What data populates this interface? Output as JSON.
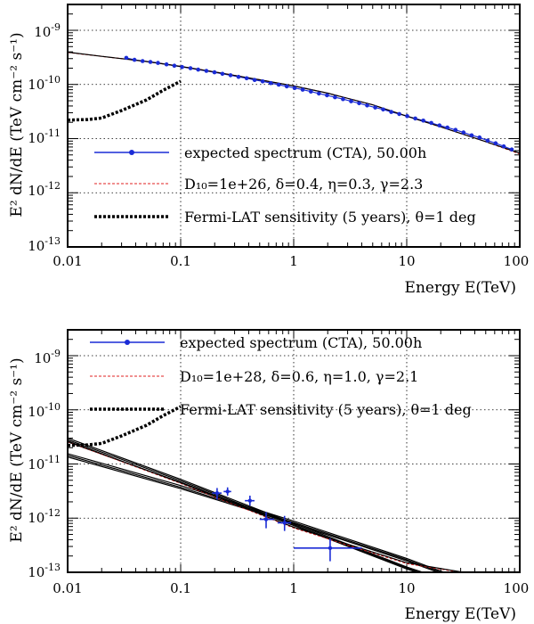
{
  "chart_data": [
    {
      "type": "line",
      "panel": "top",
      "xscale": "log",
      "yscale": "log",
      "xlim": [
        0.01,
        100
      ],
      "ylim": [
        1e-13,
        3e-09
      ],
      "xlabel": "Energy E(TeV)",
      "ylabel": "E² dN/dE (TeV cm⁻² s⁻¹)",
      "xticks": [
        "0.01",
        "0.1",
        "1",
        "10",
        "100"
      ],
      "yticks": [
        {
          "base": "10",
          "exp": "-9"
        },
        {
          "base": "10",
          "exp": "-10"
        },
        {
          "base": "10",
          "exp": "-11"
        },
        {
          "base": "10",
          "exp": "-12"
        },
        {
          "base": "10",
          "exp": "-13"
        }
      ],
      "grid": true,
      "legend": [
        {
          "text": "expected spectrum (CTA), 50.00h"
        },
        {
          "text": "D₁₀=1e+26, δ=0.4, η=0.3, γ=2.3"
        },
        {
          "text": "Fermi-LAT sensitivity (5 years), θ=1 deg"
        }
      ],
      "series": [
        {
          "name": "expected spectrum (CTA), 50.00h",
          "color": "#1a2bd6",
          "points": [
            [
              0.033,
              3.1e-10
            ],
            [
              0.039,
              2.85e-10
            ],
            [
              0.046,
              2.7e-10
            ],
            [
              0.054,
              2.6e-10
            ],
            [
              0.063,
              2.5e-10
            ],
            [
              0.075,
              2.35e-10
            ],
            [
              0.088,
              2.22e-10
            ],
            [
              0.103,
              2.1e-10
            ],
            [
              0.122,
              2e-10
            ],
            [
              0.143,
              1.88e-10
            ],
            [
              0.169,
              1.78e-10
            ],
            [
              0.199,
              1.68e-10
            ],
            [
              0.234,
              1.57e-10
            ],
            [
              0.276,
              1.48e-10
            ],
            [
              0.325,
              1.38e-10
            ],
            [
              0.383,
              1.3e-10
            ],
            [
              0.451,
              1.21e-10
            ],
            [
              0.531,
              1.14e-10
            ],
            [
              0.626,
              1.06e-10
            ],
            [
              0.737,
              9.9e-11
            ],
            [
              0.868,
              9.2e-11
            ],
            [
              1.02,
              8.6e-11
            ],
            [
              1.2,
              8e-11
            ],
            [
              1.42,
              7.4e-11
            ],
            [
              1.67,
              6.8e-11
            ],
            [
              1.97,
              6.3e-11
            ],
            [
              2.32,
              5.8e-11
            ],
            [
              2.73,
              5.35e-11
            ],
            [
              3.22,
              4.9e-11
            ],
            [
              3.79,
              4.5e-11
            ],
            [
              4.46,
              4.1e-11
            ],
            [
              5.26,
              3.75e-11
            ],
            [
              6.19,
              3.45e-11
            ],
            [
              7.29,
              3.1e-11
            ],
            [
              8.59,
              2.85e-11
            ],
            [
              10.1,
              2.6e-11
            ],
            [
              11.9,
              2.35e-11
            ],
            [
              14.0,
              2.15e-11
            ],
            [
              16.5,
              1.95e-11
            ],
            [
              19.5,
              1.75e-11
            ],
            [
              22.9,
              1.6e-11
            ],
            [
              27.0,
              1.45e-11
            ],
            [
              31.8,
              1.3e-11
            ],
            [
              37.5,
              1.15e-11
            ],
            [
              44.1,
              1.05e-11
            ],
            [
              52.0,
              9.2e-12
            ],
            [
              61.2,
              8.2e-12
            ],
            [
              72.1,
              7.2e-12
            ],
            [
              84.9,
              6.3e-12
            ]
          ]
        },
        {
          "name": "D₁₀=1e+26, δ=0.4, η=0.3, γ=2.3",
          "color": "#e02020",
          "points": [
            [
              0.01,
              3.9e-10
            ],
            [
              0.02,
              3.3e-10
            ],
            [
              0.05,
              2.65e-10
            ],
            [
              0.1,
              2.15e-10
            ],
            [
              0.2,
              1.7e-10
            ],
            [
              0.5,
              1.22e-10
            ],
            [
              1,
              9.4e-11
            ],
            [
              2,
              6.9e-11
            ],
            [
              5,
              4.2e-11
            ],
            [
              10,
              2.6e-11
            ],
            [
              20,
              1.65e-11
            ],
            [
              50,
              8.8e-12
            ],
            [
              100,
              5.2e-12
            ]
          ]
        },
        {
          "name": "model-total",
          "color": "#000000",
          "points": [
            [
              0.01,
              3.95e-10
            ],
            [
              0.02,
              3.3e-10
            ],
            [
              0.05,
              2.65e-10
            ],
            [
              0.1,
              2.15e-10
            ],
            [
              0.2,
              1.7e-10
            ],
            [
              0.5,
              1.22e-10
            ],
            [
              1,
              9.4e-11
            ],
            [
              2,
              6.9e-11
            ],
            [
              5,
              4.2e-11
            ],
            [
              10,
              2.6e-11
            ],
            [
              20,
              1.65e-11
            ],
            [
              50,
              8.8e-12
            ],
            [
              100,
              5.4e-12
            ]
          ]
        },
        {
          "name": "Fermi-LAT sensitivity (5 years), θ=1 deg",
          "color": "#000000",
          "points": [
            [
              0.01,
              2.2e-11
            ],
            [
              0.015,
              2.25e-11
            ],
            [
              0.02,
              2.4e-11
            ],
            [
              0.03,
              3.3e-11
            ],
            [
              0.05,
              5.2e-11
            ],
            [
              0.07,
              7.8e-11
            ],
            [
              0.1,
              1.15e-10
            ]
          ]
        }
      ]
    },
    {
      "type": "line",
      "panel": "bottom",
      "xscale": "log",
      "yscale": "log",
      "xlim": [
        0.01,
        100
      ],
      "ylim": [
        1e-13,
        3e-09
      ],
      "xlabel": "Energy E(TeV)",
      "ylabel": "E² dN/dE (TeV cm⁻² s⁻¹)",
      "xticks": [
        "0.01",
        "0.1",
        "1",
        "10",
        "100"
      ],
      "yticks": [
        {
          "base": "10",
          "exp": "-9"
        },
        {
          "base": "10",
          "exp": "-10"
        },
        {
          "base": "10",
          "exp": "-11"
        },
        {
          "base": "10",
          "exp": "-12"
        },
        {
          "base": "10",
          "exp": "-13"
        }
      ],
      "grid": true,
      "legend": [
        {
          "text": "expected spectrum (CTA), 50.00h"
        },
        {
          "text": "D₁₀=1e+28, δ=0.6, η=1.0, γ=2.1"
        },
        {
          "text": "Fermi-LAT sensitivity (5 years), θ=1 deg"
        }
      ],
      "data_points": [
        {
          "x": 0.21,
          "y": 2.9e-12,
          "xlo": 0.19,
          "xhi": 0.23,
          "ylo": 2.2e-12,
          "yhi": 3.6e-12
        },
        {
          "x": 0.26,
          "y": 3.1e-12,
          "xlo": 0.24,
          "xhi": 0.28,
          "ylo": 2.6e-12,
          "yhi": 3.7e-12
        },
        {
          "x": 0.41,
          "y": 2.1e-12,
          "xlo": 0.37,
          "xhi": 0.45,
          "ylo": 1.7e-12,
          "yhi": 2.6e-12
        },
        {
          "x": 0.57,
          "y": 9.5e-13,
          "xlo": 0.5,
          "xhi": 0.67,
          "ylo": 6.5e-13,
          "yhi": 1.3e-12
        },
        {
          "x": 0.83,
          "y": 8.2e-13,
          "xlo": 0.72,
          "xhi": 0.95,
          "ylo": 5.8e-13,
          "yhi": 1.1e-12
        },
        {
          "x": 2.1,
          "y": 2.8e-13,
          "xlo": 1.0,
          "xhi": 4.0,
          "ylo": 1.6e-13,
          "yhi": 4.2e-13
        }
      ],
      "series": [
        {
          "name": "model-1",
          "color": "#000000",
          "points": [
            [
              0.01,
              3e-11
            ],
            [
              0.1,
              5.2e-12
            ],
            [
              1,
              8e-13
            ],
            [
              10,
              1.25e-13
            ],
            [
              15,
              9.5e-14
            ]
          ]
        },
        {
          "name": "model-2",
          "color": "#000000",
          "points": [
            [
              0.01,
              2.8e-11
            ],
            [
              0.1,
              4.9e-12
            ],
            [
              1,
              7.6e-13
            ],
            [
              10,
              1.2e-13
            ],
            [
              15,
              9e-14
            ]
          ]
        },
        {
          "name": "model-3",
          "color": "#000000",
          "points": [
            [
              0.01,
              2.55e-11
            ],
            [
              0.1,
              4.6e-12
            ],
            [
              1,
              7.3e-13
            ],
            [
              10,
              1.15e-13
            ],
            [
              15,
              8.8e-14
            ]
          ]
        },
        {
          "name": "model-4",
          "color": "#000000",
          "points": [
            [
              0.01,
              1.55e-11
            ],
            [
              0.1,
              4e-12
            ],
            [
              1,
              8.8e-13
            ],
            [
              10,
              1.8e-13
            ],
            [
              20,
              1.05e-13
            ],
            [
              25,
              9e-14
            ]
          ]
        },
        {
          "name": "model-5",
          "color": "#000000",
          "points": [
            [
              0.01,
              1.45e-11
            ],
            [
              0.1,
              3.7e-12
            ],
            [
              1,
              8.3e-13
            ],
            [
              10,
              1.7e-13
            ],
            [
              20,
              1e-13
            ],
            [
              25,
              8.5e-14
            ]
          ]
        },
        {
          "name": "model-6",
          "color": "#000000",
          "points": [
            [
              0.01,
              1.35e-11
            ],
            [
              0.1,
              3.5e-12
            ],
            [
              1,
              7.9e-13
            ],
            [
              10,
              1.62e-13
            ],
            [
              20,
              9.6e-14
            ],
            [
              25,
              8e-14
            ]
          ]
        },
        {
          "name": "D₁₀=1e+28, δ=0.6, η=1.0, γ=2.1",
          "color": "#e02020",
          "points": [
            [
              0.01,
              2.6e-11
            ],
            [
              0.1,
              4.4e-12
            ],
            [
              1,
              6.6e-13
            ],
            [
              10,
              1.45e-13
            ],
            [
              30,
              1e-13
            ],
            [
              100,
              1e-13
            ]
          ]
        },
        {
          "name": "model-total",
          "color": "#000000",
          "points": [
            [
              0.01,
              2.65e-11
            ],
            [
              0.1,
              4.5e-12
            ],
            [
              1,
              6.8e-13
            ],
            [
              10,
              1.5e-13
            ],
            [
              30,
              1.02e-13
            ],
            [
              100,
              1.02e-13
            ]
          ]
        },
        {
          "name": "Fermi-LAT sensitivity (5 years), θ=1 deg",
          "color": "#000000",
          "points": [
            [
              0.01,
              2.2e-11
            ],
            [
              0.015,
              2.25e-11
            ],
            [
              0.02,
              2.4e-11
            ],
            [
              0.03,
              3.3e-11
            ],
            [
              0.05,
              5.2e-11
            ],
            [
              0.07,
              7.8e-11
            ],
            [
              0.1,
              1.15e-10
            ]
          ]
        }
      ]
    }
  ]
}
